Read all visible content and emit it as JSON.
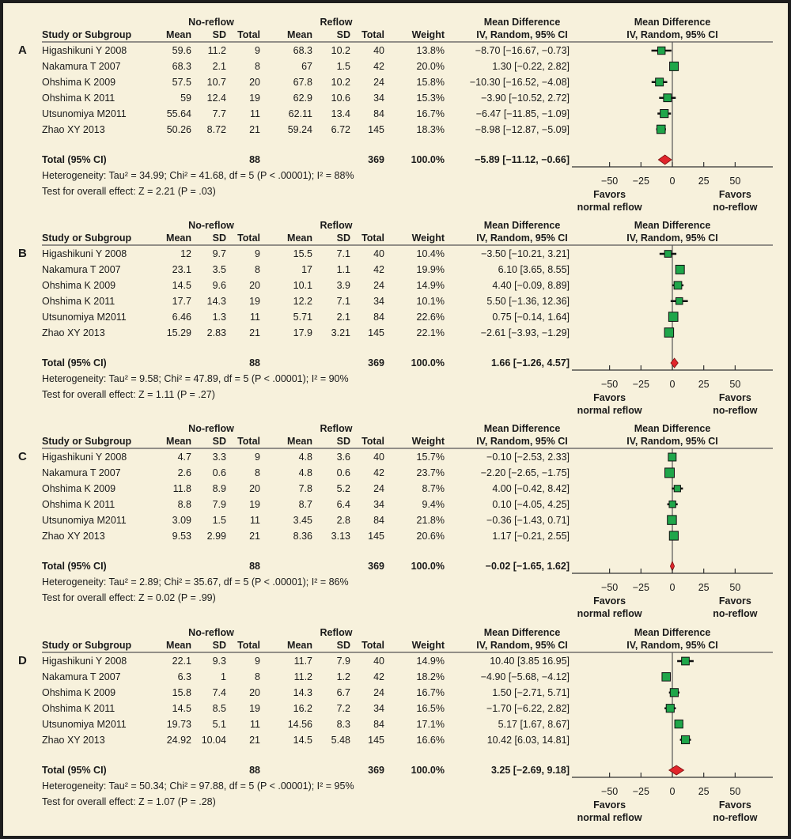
{
  "headers": {
    "study": "Study or Subgroup",
    "group_noreflow": "No-reflow",
    "group_reflow": "Reflow",
    "mean": "Mean",
    "sd": "SD",
    "total": "Total",
    "weight": "Weight",
    "md_title": "Mean Difference",
    "md_method": "IV, Random, 95% CI",
    "total_row_label": "Total (95% CI)",
    "favors_left_1": "Favors",
    "favors_left_2": "normal reflow",
    "favors_right_1": "Favors",
    "favors_right_2": "no-reflow"
  },
  "colors": {
    "background": "#f7f1dc",
    "square": "#1fa64a",
    "diamond": "#e0252b",
    "frame": "#1e1e1e"
  },
  "chart_data": {
    "type": "forest",
    "xlim": [
      -80,
      80
    ],
    "ticks": [
      -50,
      -25,
      0,
      25,
      50
    ],
    "tick_labels": [
      "−50",
      "−25",
      "0",
      "25",
      "50"
    ],
    "panels": [
      {
        "label": "A",
        "studies": [
          {
            "name": "Higashikuni Y 2008",
            "nr_mean": "59.6",
            "nr_sd": "11.2",
            "nr_total": "9",
            "r_mean": "68.3",
            "r_sd": "10.2",
            "r_total": "40",
            "weight": "13.8%",
            "w": 13.8,
            "md": -8.7,
            "lo": -16.67,
            "hi": -0.73,
            "ci_text": "−8.70 [−16.67, −0.73]"
          },
          {
            "name": "Nakamura T 2007",
            "nr_mean": "68.3",
            "nr_sd": "2.1",
            "nr_total": "8",
            "r_mean": "67",
            "r_sd": "1.5",
            "r_total": "42",
            "weight": "20.0%",
            "w": 20.0,
            "md": 1.3,
            "lo": -0.22,
            "hi": 2.82,
            "ci_text": "1.30 [−0.22, 2.82]"
          },
          {
            "name": "Ohshima K 2009",
            "nr_mean": "57.5",
            "nr_sd": "10.7",
            "nr_total": "20",
            "r_mean": "67.8",
            "r_sd": "10.2",
            "r_total": "24",
            "weight": "15.8%",
            "w": 15.8,
            "md": -10.3,
            "lo": -16.52,
            "hi": -4.08,
            "ci_text": "−10.30 [−16.52, −4.08]"
          },
          {
            "name": "Ohshima K 2011",
            "nr_mean": "59",
            "nr_sd": "12.4",
            "nr_total": "19",
            "r_mean": "62.9",
            "r_sd": "10.6",
            "r_total": "34",
            "weight": "15.3%",
            "w": 15.3,
            "md": -3.9,
            "lo": -10.52,
            "hi": 2.72,
            "ci_text": "−3.90 [−10.52, 2.72]"
          },
          {
            "name": "Utsunomiya M2011",
            "nr_mean": "55.64",
            "nr_sd": "7.7",
            "nr_total": "11",
            "r_mean": "62.11",
            "r_sd": "13.4",
            "r_total": "84",
            "weight": "16.7%",
            "w": 16.7,
            "md": -6.47,
            "lo": -11.85,
            "hi": -1.09,
            "ci_text": "−6.47 [−11.85, −1.09]"
          },
          {
            "name": "Zhao XY 2013",
            "nr_mean": "50.26",
            "nr_sd": "8.72",
            "nr_total": "21",
            "r_mean": "59.24",
            "r_sd": "6.72",
            "r_total": "145",
            "weight": "18.3%",
            "w": 18.3,
            "md": -8.98,
            "lo": -12.87,
            "hi": -5.09,
            "ci_text": "−8.98 [−12.87, −5.09]"
          }
        ],
        "total": {
          "nr_total": "88",
          "r_total": "369",
          "weight": "100.0%",
          "md": -5.89,
          "lo": -11.12,
          "hi": -0.66,
          "ci_text": "−5.89 [−11.12, −0.66]"
        },
        "heterogeneity": "Heterogeneity: Tau² = 34.99; Chi² = 41.68, df = 5 (P < .00001); I² = 88%",
        "overall_effect": "Test for overall effect: Z = 2.21 (P = .03)"
      },
      {
        "label": "B",
        "studies": [
          {
            "name": "Higashikuni Y 2008",
            "nr_mean": "12",
            "nr_sd": "9.7",
            "nr_total": "9",
            "r_mean": "15.5",
            "r_sd": "7.1",
            "r_total": "40",
            "weight": "10.4%",
            "w": 10.4,
            "md": -3.5,
            "lo": -10.21,
            "hi": 3.21,
            "ci_text": "−3.50 [−10.21, 3.21]"
          },
          {
            "name": "Nakamura T 2007",
            "nr_mean": "23.1",
            "nr_sd": "3.5",
            "nr_total": "8",
            "r_mean": "17",
            "r_sd": "1.1",
            "r_total": "42",
            "weight": "19.9%",
            "w": 19.9,
            "md": 6.1,
            "lo": 3.65,
            "hi": 8.55,
            "ci_text": "6.10 [3.65, 8.55]"
          },
          {
            "name": "Ohshima K 2009",
            "nr_mean": "14.5",
            "nr_sd": "9.6",
            "nr_total": "20",
            "r_mean": "10.1",
            "r_sd": "3.9",
            "r_total": "24",
            "weight": "14.9%",
            "w": 14.9,
            "md": 4.4,
            "lo": -0.09,
            "hi": 8.89,
            "ci_text": "4.40 [−0.09, 8.89]"
          },
          {
            "name": "Ohshima K 2011",
            "nr_mean": "17.7",
            "nr_sd": "14.3",
            "nr_total": "19",
            "r_mean": "12.2",
            "r_sd": "7.1",
            "r_total": "34",
            "weight": "10.1%",
            "w": 10.1,
            "md": 5.5,
            "lo": -1.36,
            "hi": 12.36,
            "ci_text": "5.50 [−1.36, 12.36]"
          },
          {
            "name": "Utsunomiya M2011",
            "nr_mean": "6.46",
            "nr_sd": "1.3",
            "nr_total": "11",
            "r_mean": "5.71",
            "r_sd": "2.1",
            "r_total": "84",
            "weight": "22.6%",
            "w": 22.6,
            "md": 0.75,
            "lo": -0.14,
            "hi": 1.64,
            "ci_text": "0.75 [−0.14, 1.64]"
          },
          {
            "name": "Zhao XY 2013",
            "nr_mean": "15.29",
            "nr_sd": "2.83",
            "nr_total": "21",
            "r_mean": "17.9",
            "r_sd": "3.21",
            "r_total": "145",
            "weight": "22.1%",
            "w": 22.1,
            "md": -2.61,
            "lo": -3.93,
            "hi": -1.29,
            "ci_text": "−2.61 [−3.93, −1.29]"
          }
        ],
        "total": {
          "nr_total": "88",
          "r_total": "369",
          "weight": "100.0%",
          "md": 1.66,
          "lo": -1.26,
          "hi": 4.57,
          "ci_text": "1.66 [−1.26, 4.57]"
        },
        "heterogeneity": "Heterogeneity: Tau² = 9.58; Chi² = 47.89, df = 5 (P < .00001); I² = 90%",
        "overall_effect": "Test for overall effect: Z = 1.11 (P = .27)"
      },
      {
        "label": "C",
        "studies": [
          {
            "name": "Higashikuni Y 2008",
            "nr_mean": "4.7",
            "nr_sd": "3.3",
            "nr_total": "9",
            "r_mean": "4.8",
            "r_sd": "3.6",
            "r_total": "40",
            "weight": "15.7%",
            "w": 15.7,
            "md": -0.1,
            "lo": -2.53,
            "hi": 2.33,
            "ci_text": "−0.10 [−2.53, 2.33]"
          },
          {
            "name": "Nakamura T 2007",
            "nr_mean": "2.6",
            "nr_sd": "0.6",
            "nr_total": "8",
            "r_mean": "4.8",
            "r_sd": "0.6",
            "r_total": "42",
            "weight": "23.7%",
            "w": 23.7,
            "md": -2.2,
            "lo": -2.65,
            "hi": -1.75,
            "ci_text": "−2.20 [−2.65, −1.75]"
          },
          {
            "name": "Ohshima K 2009",
            "nr_mean": "11.8",
            "nr_sd": "8.9",
            "nr_total": "20",
            "r_mean": "7.8",
            "r_sd": "5.2",
            "r_total": "24",
            "weight": "8.7%",
            "w": 8.7,
            "md": 4.0,
            "lo": -0.42,
            "hi": 8.42,
            "ci_text": "4.00 [−0.42, 8.42]"
          },
          {
            "name": "Ohshima K 2011",
            "nr_mean": "8.8",
            "nr_sd": "7.9",
            "nr_total": "19",
            "r_mean": "8.7",
            "r_sd": "6.4",
            "r_total": "34",
            "weight": "9.4%",
            "w": 9.4,
            "md": 0.1,
            "lo": -4.05,
            "hi": 4.25,
            "ci_text": "0.10 [−4.05, 4.25]"
          },
          {
            "name": "Utsunomiya M2011",
            "nr_mean": "3.09",
            "nr_sd": "1.5",
            "nr_total": "11",
            "r_mean": "3.45",
            "r_sd": "2.8",
            "r_total": "84",
            "weight": "21.8%",
            "w": 21.8,
            "md": -0.36,
            "lo": -1.43,
            "hi": 0.71,
            "ci_text": "−0.36 [−1.43, 0.71]"
          },
          {
            "name": "Zhao XY 2013",
            "nr_mean": "9.53",
            "nr_sd": "2.99",
            "nr_total": "21",
            "r_mean": "8.36",
            "r_sd": "3.13",
            "r_total": "145",
            "weight": "20.6%",
            "w": 20.6,
            "md": 1.17,
            "lo": -0.21,
            "hi": 2.55,
            "ci_text": "1.17 [−0.21, 2.55]"
          }
        ],
        "total": {
          "nr_total": "88",
          "r_total": "369",
          "weight": "100.0%",
          "md": -0.02,
          "lo": -1.65,
          "hi": 1.62,
          "ci_text": "−0.02 [−1.65, 1.62]"
        },
        "heterogeneity": "Heterogeneity: Tau² = 2.89; Chi² = 35.67, df = 5 (P < .00001); I² = 86%",
        "overall_effect": "Test for overall effect: Z = 0.02 (P = .99)"
      },
      {
        "label": "D",
        "studies": [
          {
            "name": "Higashikuni Y 2008",
            "nr_mean": "22.1",
            "nr_sd": "9.3",
            "nr_total": "9",
            "r_mean": "11.7",
            "r_sd": "7.9",
            "r_total": "40",
            "weight": "14.9%",
            "w": 14.9,
            "md": 10.4,
            "lo": 3.85,
            "hi": 16.95,
            "ci_text": "10.40 [3.85 16.95]"
          },
          {
            "name": "Nakamura T 2007",
            "nr_mean": "6.3",
            "nr_sd": "1",
            "nr_total": "8",
            "r_mean": "11.2",
            "r_sd": "1.2",
            "r_total": "42",
            "weight": "18.2%",
            "w": 18.2,
            "md": -4.9,
            "lo": -5.68,
            "hi": -4.12,
            "ci_text": "−4.90 [−5.68, −4.12]"
          },
          {
            "name": "Ohshima K 2009",
            "nr_mean": "15.8",
            "nr_sd": "7.4",
            "nr_total": "20",
            "r_mean": "14.3",
            "r_sd": "6.7",
            "r_total": "24",
            "weight": "16.7%",
            "w": 16.7,
            "md": 1.5,
            "lo": -2.71,
            "hi": 5.71,
            "ci_text": "1.50 [−2.71, 5.71]"
          },
          {
            "name": "Ohshima K 2011",
            "nr_mean": "14.5",
            "nr_sd": "8.5",
            "nr_total": "19",
            "r_mean": "16.2",
            "r_sd": "7.2",
            "r_total": "34",
            "weight": "16.5%",
            "w": 16.5,
            "md": -1.7,
            "lo": -6.22,
            "hi": 2.82,
            "ci_text": "−1.70 [−6.22, 2.82]"
          },
          {
            "name": "Utsunomiya M2011",
            "nr_mean": "19.73",
            "nr_sd": "5.1",
            "nr_total": "11",
            "r_mean": "14.56",
            "r_sd": "8.3",
            "r_total": "84",
            "weight": "17.1%",
            "w": 17.1,
            "md": 5.17,
            "lo": 1.67,
            "hi": 8.67,
            "ci_text": "5.17 [1.67, 8.67]"
          },
          {
            "name": "Zhao XY 2013",
            "nr_mean": "24.92",
            "nr_sd": "10.04",
            "nr_total": "21",
            "r_mean": "14.5",
            "r_sd": "5.48",
            "r_total": "145",
            "weight": "16.6%",
            "w": 16.6,
            "md": 10.42,
            "lo": 6.03,
            "hi": 14.81,
            "ci_text": "10.42 [6.03, 14.81]"
          }
        ],
        "total": {
          "nr_total": "88",
          "r_total": "369",
          "weight": "100.0%",
          "md": 3.25,
          "lo": -2.69,
          "hi": 9.18,
          "ci_text": "3.25 [−2.69, 9.18]"
        },
        "heterogeneity": "Heterogeneity: Tau² = 50.34; Chi² = 97.88, df = 5 (P < .00001); I² = 95%",
        "overall_effect": "Test for overall effect: Z = 1.07 (P = .28)"
      }
    ]
  }
}
